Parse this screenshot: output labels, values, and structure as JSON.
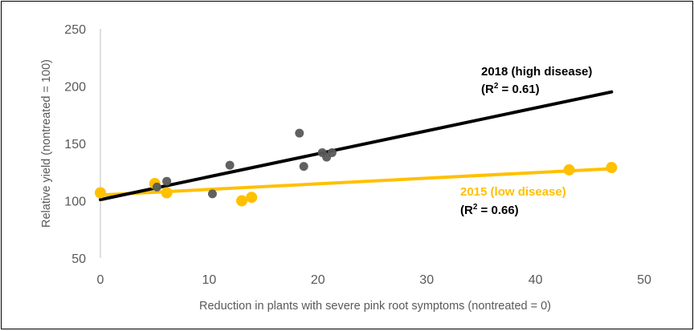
{
  "chart_data": {
    "type": "scatter",
    "title": "",
    "xlabel": "Reduction in plants with severe pink root symptoms (nontreated = 0)",
    "ylabel": "Relative yield (nontreated = 100)",
    "xlim": [
      0,
      50
    ],
    "ylim": [
      50,
      250
    ],
    "x_ticks": [
      "0",
      "10",
      "20",
      "30",
      "40",
      "50"
    ],
    "y_ticks": [
      "50",
      "100",
      "150",
      "200",
      "250"
    ],
    "grid": false,
    "legend": "none",
    "series": [
      {
        "name": "2018 (high disease)",
        "color": "#000000",
        "point_color": "#595959",
        "points": [
          {
            "x": 5.2,
            "y": 112
          },
          {
            "x": 6.1,
            "y": 117
          },
          {
            "x": 10.3,
            "y": 106
          },
          {
            "x": 11.9,
            "y": 131
          },
          {
            "x": 18.3,
            "y": 159
          },
          {
            "x": 18.7,
            "y": 130
          },
          {
            "x": 20.4,
            "y": 142
          },
          {
            "x": 20.8,
            "y": 138
          },
          {
            "x": 21.3,
            "y": 142
          }
        ],
        "trendline": {
          "x": [
            0,
            47
          ],
          "y": [
            101,
            195
          ]
        },
        "annotation": {
          "label": "2018 (high disease)",
          "r2_prefix": "(R",
          "r2_sup": "2",
          "r2_suffix": " = 0.61)"
        }
      },
      {
        "name": "2015 (low disease)",
        "color": "#FFC000",
        "point_color": "#FFC000",
        "points": [
          {
            "x": 0,
            "y": 107
          },
          {
            "x": 5.0,
            "y": 115
          },
          {
            "x": 6.1,
            "y": 107
          },
          {
            "x": 13.0,
            "y": 100
          },
          {
            "x": 13.9,
            "y": 103
          },
          {
            "x": 43.1,
            "y": 127
          },
          {
            "x": 47.0,
            "y": 129
          }
        ],
        "trendline": {
          "x": [
            0,
            47
          ],
          "y": [
            105,
            128
          ]
        },
        "annotation": {
          "label": "2015 (low disease)",
          "r2_prefix": "(R",
          "r2_sup": "2",
          "r2_suffix": " = 0.66)"
        }
      }
    ]
  }
}
